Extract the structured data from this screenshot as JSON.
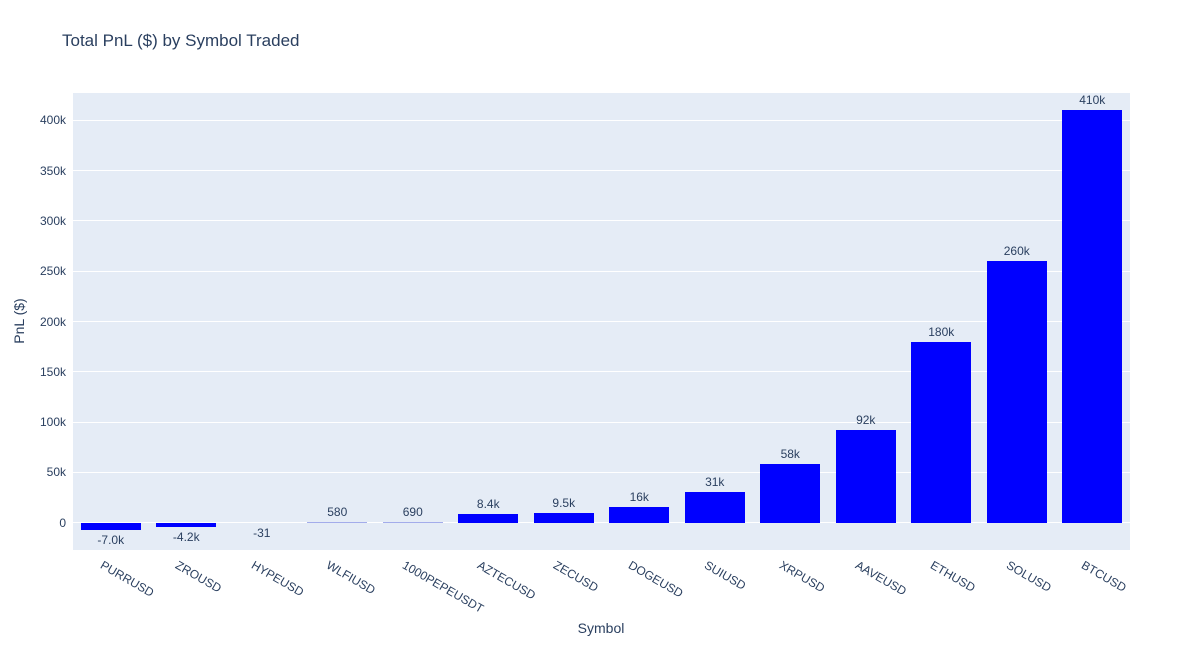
{
  "chart_data": {
    "type": "bar",
    "title": "Total PnL ($) by Symbol Traded",
    "xlabel": "Symbol",
    "ylabel": "PnL ($)",
    "categories": [
      "PURRUSD",
      "ZROUSD",
      "HYPEUSD",
      "WLFIUSD",
      "1000PEPEUSDT",
      "AZTECUSD",
      "ZECUSD",
      "DOGEUSD",
      "SUIUSD",
      "XRPUSD",
      "AAVEUSD",
      "ETHUSD",
      "SOLUSD",
      "BTCUSD"
    ],
    "values": [
      -7000,
      -4200,
      -31,
      580,
      690,
      8400,
      9500,
      16000,
      31000,
      58000,
      92000,
      180000,
      260000,
      410000
    ],
    "bar_labels": [
      "-7.0k",
      "-4.2k",
      "-31",
      "580",
      "690",
      "8.4k",
      "9.5k",
      "16k",
      "31k",
      "58k",
      "92k",
      "180k",
      "260k",
      "410k"
    ],
    "y_ticks": [
      {
        "value": 0,
        "label": "0"
      },
      {
        "value": 50000,
        "label": "50k"
      },
      {
        "value": 100000,
        "label": "100k"
      },
      {
        "value": 150000,
        "label": "150k"
      },
      {
        "value": 200000,
        "label": "200k"
      },
      {
        "value": 250000,
        "label": "250k"
      },
      {
        "value": 300000,
        "label": "300k"
      },
      {
        "value": 350000,
        "label": "350k"
      },
      {
        "value": 400000,
        "label": "400k"
      }
    ],
    "ylim": [
      -27000,
      427000
    ],
    "grid": true,
    "legend_position": "none",
    "colors": {
      "bar": "#0000ff",
      "thin_bar": "#a3aceb",
      "plot_background": "#e5ecf6",
      "gridline": "#ffffff",
      "text": "#2a3f5f"
    }
  }
}
